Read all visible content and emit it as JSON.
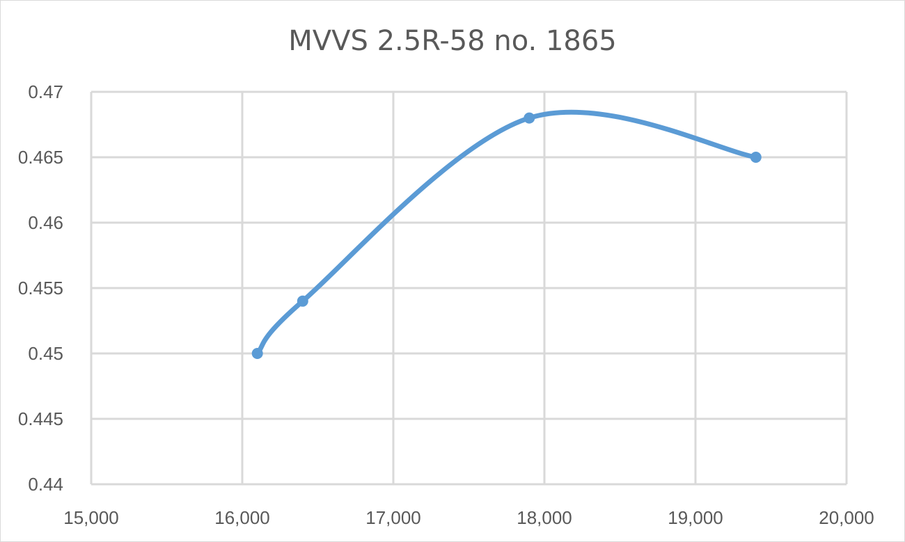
{
  "chart_data": {
    "type": "line",
    "title": "MVVS 2.5R-58 no. 1865",
    "xlabel": "",
    "ylabel": "",
    "xlim": [
      15000,
      20000
    ],
    "ylim": [
      0.44,
      0.47
    ],
    "x_ticks": [
      15000,
      16000,
      17000,
      18000,
      19000,
      20000
    ],
    "x_tick_labels": [
      "15,000",
      "16,000",
      "17,000",
      "18,000",
      "19,000",
      "20,000"
    ],
    "y_ticks": [
      0.44,
      0.445,
      0.45,
      0.455,
      0.46,
      0.465,
      0.47
    ],
    "y_tick_labels": [
      "0.44",
      "0.445",
      "0.45",
      "0.455",
      "0.46",
      "0.465",
      "0.47"
    ],
    "grid": true,
    "smooth": true,
    "series": [
      {
        "x": [
          16100,
          16400,
          17900,
          19400
        ],
        "y": [
          0.45,
          0.454,
          0.468,
          0.465
        ],
        "color": "#5b9bd5"
      }
    ]
  }
}
